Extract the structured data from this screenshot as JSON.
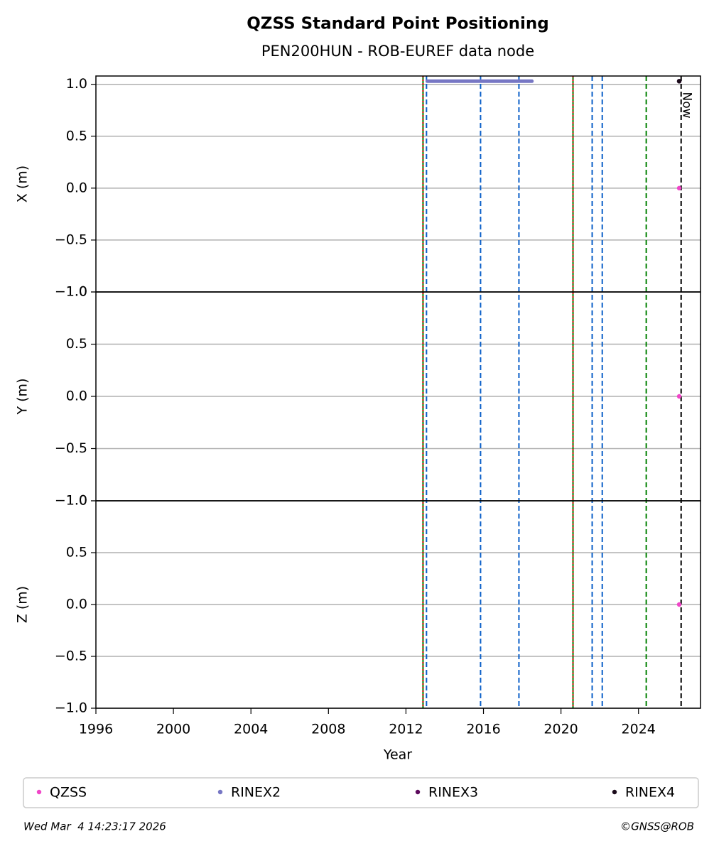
{
  "chart_data": {
    "type": "scatter",
    "title": "QZSS Standard Point Positioning",
    "subtitle": "PEN200HUN - ROB-EUREF data node",
    "xlabel": "Year",
    "xlim": [
      1996,
      2027.2
    ],
    "xticks": [
      1996,
      2000,
      2004,
      2008,
      2012,
      2016,
      2020,
      2024
    ],
    "panels": [
      {
        "ylabel": "X (m)",
        "ylim": [
          -1,
          1.08
        ],
        "yticks": [
          {
            "value": -1,
            "label": "−1.0"
          },
          {
            "value": -0.5,
            "label": "−0.5"
          },
          {
            "value": 0,
            "label": "0.0"
          },
          0.5,
          {
            "value": 1,
            "label": "1.0"
          }
        ]
      },
      {
        "ylabel": "Y (m)",
        "ylim": [
          -1,
          1
        ],
        "yticks": [
          {
            "value": -1,
            "label": "−1.0"
          },
          {
            "value": -0.5,
            "label": "−0.5"
          },
          {
            "value": 0,
            "label": "0.0"
          },
          0.5,
          {
            "value": 1,
            "label": "1.0"
          }
        ]
      },
      {
        "ylabel": "Z (m)",
        "ylim": [
          -1,
          1
        ],
        "yticks": [
          {
            "value": -1,
            "label": "−1.0"
          },
          {
            "value": -0.5,
            "label": "−0.5"
          },
          {
            "value": 0,
            "label": "0.0"
          },
          0.5,
          {
            "value": 1,
            "label": "1.0"
          }
        ]
      }
    ],
    "series": [
      {
        "name": "QZSS",
        "color": "#f046c8",
        "style": "dot",
        "panel": [
          0,
          1,
          2
        ],
        "x": [
          2026.1,
          2026.1,
          2026.1
        ],
        "values": [
          0,
          0,
          0
        ]
      },
      {
        "name": "RINEX2",
        "color": "#7777c4",
        "style": "line",
        "panel": [
          0,
          0
        ],
        "x": [
          2013.1,
          2018.5
        ],
        "values": [
          1.03,
          1.03
        ]
      },
      {
        "name": "RINEX3",
        "color": "#5c0a5c",
        "style": "dot",
        "panel": [
          0
        ],
        "x": [
          2026.1
        ],
        "values": [
          1.03
        ]
      },
      {
        "name": "RINEX4",
        "color": "#1a0a1a",
        "style": "dot",
        "panel": [
          0
        ],
        "x": [
          2026.1
        ],
        "values": [
          1.03
        ]
      }
    ],
    "events": [
      {
        "x": 2012.88,
        "color": "#008000",
        "dash": "solid"
      },
      {
        "x": 2012.88,
        "color": "#e00000",
        "dash": "dotted"
      },
      {
        "x": 2013.06,
        "color": "#0a5fc8",
        "dash": "dashed"
      },
      {
        "x": 2015.85,
        "color": "#0a5fc8",
        "dash": "dashed"
      },
      {
        "x": 2017.83,
        "color": "#0a5fc8",
        "dash": "dashed"
      },
      {
        "x": 2020.62,
        "color": "#008000",
        "dash": "solid"
      },
      {
        "x": 2020.62,
        "color": "#e00000",
        "dash": "dotted"
      },
      {
        "x": 2021.61,
        "color": "#0a5fc8",
        "dash": "dashed"
      },
      {
        "x": 2022.13,
        "color": "#0a5fc8",
        "dash": "dashed"
      },
      {
        "x": 2024.4,
        "color": "#008000",
        "dash": "dashed"
      }
    ],
    "now": {
      "x": 2026.2,
      "label": "Now"
    },
    "timestamp": "Wed Mar  4 14:23:17 2026",
    "credit": "©GNSS@ROB"
  }
}
